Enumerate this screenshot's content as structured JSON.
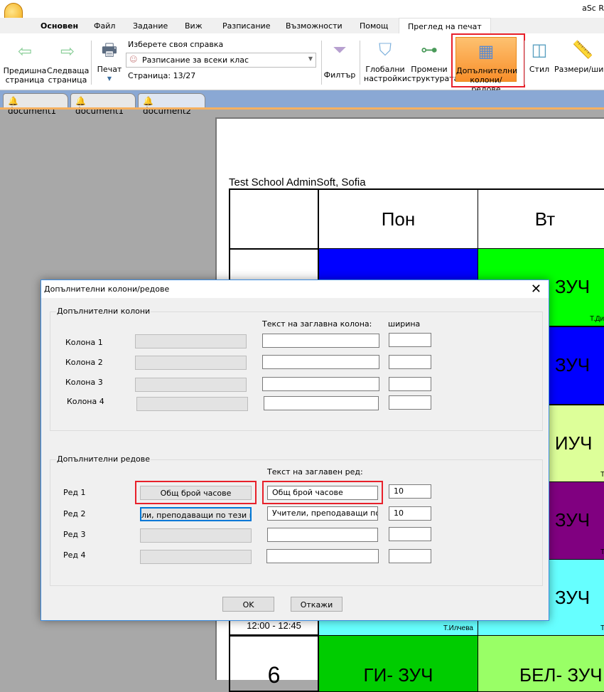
{
  "app_title": "aSc R",
  "menu_tabs": [
    "Основен",
    "Файл",
    "Задание",
    "Виж",
    "Разписание",
    "Възможности",
    "Помощ",
    "Преглед на печат"
  ],
  "ribbon": {
    "prev": "Предишна страница",
    "next": "Следваща страница",
    "print": "Печат",
    "report_label": "Изберете своя справка",
    "report_value": "Разписание за всеки клас",
    "page": "Страница: 13/27",
    "filter": "Филтър",
    "global": "Глобални настройки",
    "structure": "Промени структурата",
    "extra": "Допълнителни колони/редове",
    "style": "Стил",
    "size": "Размери/шир"
  },
  "doc_tabs": [
    "document1",
    "document1",
    "document2"
  ],
  "page": {
    "school": "Test School AdminSoft, Sofia",
    "days": [
      "Пон",
      "Вт"
    ],
    "cells": {
      "r1_tue": "- ЗУЧ",
      "r1_tue_t": "Т.Ди",
      "r2_tue": "- ЗУЧ",
      "r3_tue": "- ИУЧ",
      "r3_tue_t": "Т",
      "r4_tue": "- ЗУЧ",
      "r4_tue_t": "Т",
      "r5_tue": "- ЗУЧ",
      "r5_tue_t": "Т",
      "r5_time": "12:00 - 12:45",
      "r5_mon_t": "Т.Илчева",
      "r6_num": "6",
      "r6_mon": "ГИ- ЗУЧ",
      "r6_tue": "БЕЛ- ЗУЧ"
    },
    "colors": {
      "blue": "#0000ff",
      "green": "#00ff00",
      "lightyellow": "#ddff99",
      "purple": "#800080",
      "cyan": "#66ffff",
      "darkgreen": "#00cc00",
      "lightgreen": "#99ff66"
    }
  },
  "dialog": {
    "title": "Допълнителни колони/редове",
    "cols_group": "Допълнителни колони",
    "cols_header": "Текст на заглавна колона:",
    "width_header": "ширина",
    "cols": [
      {
        "label": "Колона 1",
        "text": "",
        "width": ""
      },
      {
        "label": "Колона 2",
        "text": "",
        "width": ""
      },
      {
        "label": "Колона 3",
        "text": "",
        "width": ""
      },
      {
        "label": "Колона 4",
        "text": "",
        "width": ""
      }
    ],
    "rows_group": "Допълнителни редове",
    "rows_header": "Текст на заглавен ред:",
    "rows": [
      {
        "label": "Ред 1",
        "button": "Общ брой часове",
        "text": "Общ брой часове",
        "width": "10"
      },
      {
        "label": "Ред 2",
        "button": "ли, преподаващи по тези пред",
        "text": "Учители, преподаващи по те",
        "width": "10"
      },
      {
        "label": "Ред 3",
        "button": "",
        "text": "",
        "width": ""
      },
      {
        "label": "Ред 4",
        "button": "",
        "text": "",
        "width": ""
      }
    ],
    "ok": "OK",
    "cancel": "Откажи"
  }
}
